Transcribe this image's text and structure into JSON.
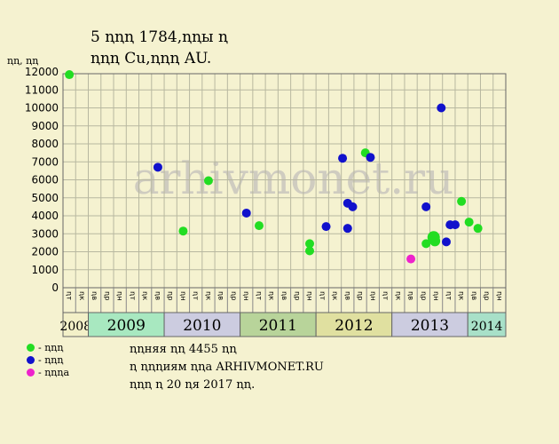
{
  "header": {
    "title_line1": "5 ꞑꞑꞑ 1784,ꞑꞑы ꞑ",
    "title_line2": "ꞑꞑꞑ Cu,ꞑꞑꞑ AU."
  },
  "legend": {
    "items": [
      {
        "label": "- ꞑꞑꞑ",
        "color": "#22dd22"
      },
      {
        "label": "- ꞑꞑꞑ",
        "color": "#1111cc"
      },
      {
        "label": "- ꞑꞑꞑa",
        "color": "#ee22cc"
      }
    ]
  },
  "notes": {
    "line1": "ꞑꞑняя ꞑꞑ 4455 ꞑꞑ",
    "line2": "ꞑ ꞑꞑꞑиям ꞑꞑa ARHIVMONET.RU",
    "line3": "ꞑꞑꞑ ꞑ 20 ꞑя 2017 ꞑꞑ."
  },
  "watermark": "arhivmonet.ru",
  "chart_data": {
    "type": "scatter",
    "ylabel": "ꞑꞑ, ꞑꞑ",
    "ylim": [
      0,
      12000
    ],
    "yticks": [
      0,
      1000,
      2000,
      3000,
      4000,
      5000,
      6000,
      7000,
      8000,
      9000,
      10000,
      11000,
      12000
    ],
    "grid": true,
    "quarter_labels": [
      "ꞑт",
      "ꞑк",
      "ꞑв",
      "ꞑр",
      "ꞑн",
      "ꞑт",
      "ꞑк",
      "ꞑв",
      "ꞑр",
      "ꞑн",
      "ꞑт",
      "ꞑк",
      "ꞑв",
      "ꞑр",
      "ꞑн",
      "ꞑт",
      "ꞑк",
      "ꞑв",
      "ꞑр",
      "ꞑн",
      "ꞑт",
      "ꞑк",
      "ꞑв",
      "ꞑр",
      "ꞑн",
      "ꞑт",
      "ꞑк",
      "ꞑв",
      "ꞑр",
      "ꞑн",
      "ꞑт",
      "ꞑк",
      "ꞑв",
      "ꞑр",
      "ꞑн",
      "ꞑт",
      "ꞑк",
      "ꞑв",
      "ꞑр",
      "ꞑн",
      "ꞑт",
      "ꞑк",
      "ꞑв",
      "ꞑр",
      "ꞑн",
      "ꞑт",
      "ꞑк",
      "ꞑв",
      "ꞑр",
      "ꞑн",
      "ꞑт",
      "ꞑк",
      "ꞑв",
      "ꞑр",
      "ꞑн",
      "ꞑт",
      "ꞑк",
      "ꞑв",
      "ꞑр",
      "ꞑн",
      "ꞑт",
      "ꞑк",
      "ꞑв",
      "ꞑр",
      "ꞑн",
      "ꞑт",
      "ꞑк",
      "ꞑв",
      "ꞑр",
      "ꞑн",
      "ꞑт",
      "ꞑк",
      "ꞑв",
      "ꞑр",
      "ꞑн",
      "ꞑт",
      "ꞑк",
      "ꞑв",
      "ꞑр",
      "ꞑн",
      "ꞑт",
      "ꞑк",
      "ꞑв",
      "ꞑр",
      "ꞑн",
      "ꞑт",
      "ꞑк",
      "ꞑв",
      "ꞑр",
      "ꞑн",
      "ꞑт",
      "ꞑк",
      "ꞑв",
      "ꞑр",
      "ꞑн",
      "ꞑт",
      "ꞑк",
      "ꞑв",
      "ꞑр",
      "ꞑн"
    ],
    "years": [
      {
        "label": "2008",
        "span": 2,
        "color": "#f3f0c8"
      },
      {
        "label": "2009",
        "span": 6,
        "color": "#a8e8c0"
      },
      {
        "label": "2010",
        "span": 6,
        "color": "#cccce0"
      },
      {
        "label": "2011",
        "span": 6,
        "color": "#b8d49a"
      },
      {
        "label": "2012",
        "span": 6,
        "color": "#e0e0a0"
      },
      {
        "label": "2013",
        "span": 6,
        "color": "#cccce0"
      },
      {
        "label": "2014",
        "span": 3,
        "color": "#a8e0c8"
      }
    ],
    "points": [
      {
        "q": 0,
        "y": 11850,
        "c": 0,
        "s": 5
      },
      {
        "q": 7,
        "y": 6700,
        "c": 1,
        "s": 5
      },
      {
        "q": 9,
        "y": 3150,
        "c": 0,
        "s": 5
      },
      {
        "q": 11,
        "y": 5950,
        "c": 0,
        "s": 5
      },
      {
        "q": 14,
        "y": 4150,
        "c": 1,
        "s": 5
      },
      {
        "q": 15,
        "y": 3450,
        "c": 0,
        "s": 5
      },
      {
        "q": 19,
        "y": 2450,
        "c": 0,
        "s": 5
      },
      {
        "q": 19,
        "y": 2050,
        "c": 0,
        "s": 5
      },
      {
        "q": 20.3,
        "y": 3400,
        "c": 1,
        "s": 5
      },
      {
        "q": 21.6,
        "y": 7200,
        "c": 1,
        "s": 5
      },
      {
        "q": 22,
        "y": 4700,
        "c": 1,
        "s": 5
      },
      {
        "q": 22,
        "y": 3300,
        "c": 1,
        "s": 5
      },
      {
        "q": 22.4,
        "y": 4500,
        "c": 1,
        "s": 5
      },
      {
        "q": 23.4,
        "y": 7500,
        "c": 0,
        "s": 5
      },
      {
        "q": 23.8,
        "y": 7250,
        "c": 1,
        "s": 5
      },
      {
        "q": 27,
        "y": 1600,
        "c": 2,
        "s": 5
      },
      {
        "q": 28.2,
        "y": 4500,
        "c": 1,
        "s": 5
      },
      {
        "q": 28.2,
        "y": 2450,
        "c": 0,
        "s": 5
      },
      {
        "q": 28.8,
        "y": 2800,
        "c": 0,
        "s": 7
      },
      {
        "q": 28.9,
        "y": 2600,
        "c": 0,
        "s": 6
      },
      {
        "q": 29.4,
        "y": 10000,
        "c": 1,
        "s": 5
      },
      {
        "q": 29.8,
        "y": 2550,
        "c": 1,
        "s": 5
      },
      {
        "q": 30.1,
        "y": 3500,
        "c": 1,
        "s": 5
      },
      {
        "q": 30.5,
        "y": 3500,
        "c": 1,
        "s": 5
      },
      {
        "q": 31,
        "y": 4800,
        "c": 0,
        "s": 5
      },
      {
        "q": 31.6,
        "y": 3650,
        "c": 0,
        "s": 5
      },
      {
        "q": 32.3,
        "y": 3300,
        "c": 0,
        "s": 5
      }
    ]
  }
}
